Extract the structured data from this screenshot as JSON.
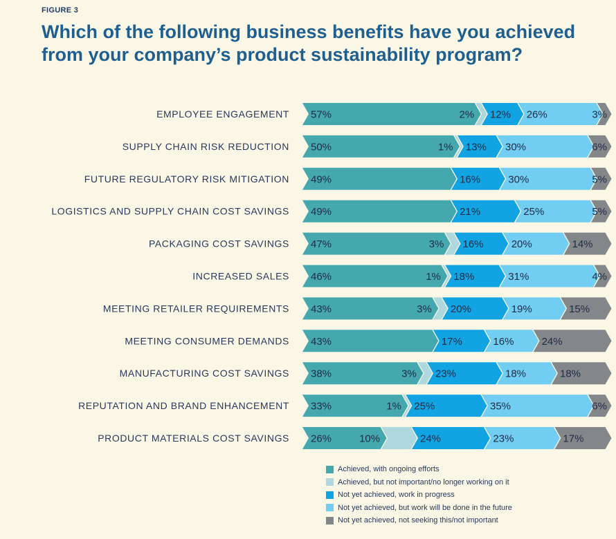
{
  "figure_label": "FIGURE 3",
  "title": "Which of the following business benefits have you achieved from your company’s product sustainability program?",
  "chart_data": {
    "type": "bar",
    "stacked": true,
    "orientation": "horizontal",
    "categories": [
      "EMPLOYEE ENGAGEMENT",
      "SUPPLY CHAIN RISK REDUCTION",
      "FUTURE REGULATORY RISK MITIGATION",
      "LOGISTICS AND SUPPLY CHAIN COST SAVINGS",
      "PACKAGING COST SAVINGS",
      "INCREASED SALES",
      "MEETING RETAILER REQUIREMENTS",
      "MEETING CONSUMER DEMANDS",
      "MANUFACTURING COST SAVINGS",
      "REPUTATION AND BRAND ENHANCEMENT",
      "PRODUCT MATERIALS COST SAVINGS"
    ],
    "series": [
      {
        "name": "Achieved, with ongoing efforts",
        "color": "#45a8ae",
        "values": [
          57,
          50,
          49,
          49,
          47,
          46,
          43,
          43,
          38,
          33,
          26
        ]
      },
      {
        "name": "Achieved, but not important/no longer working on it",
        "color": "#aed7de",
        "values": [
          2,
          1,
          0,
          0,
          3,
          1,
          3,
          0,
          3,
          1,
          10
        ]
      },
      {
        "name": "Not yet achieved, work in progress",
        "color": "#12a3e2",
        "values": [
          12,
          13,
          16,
          21,
          16,
          18,
          20,
          17,
          23,
          25,
          24
        ]
      },
      {
        "name": "Not yet achieved, but work will be done in the future",
        "color": "#72cdf2",
        "values": [
          26,
          30,
          30,
          25,
          20,
          31,
          19,
          16,
          18,
          35,
          23
        ]
      },
      {
        "name": "Not yet achieved, not seeking this/not important",
        "color": "#848789",
        "values": [
          3,
          6,
          5,
          5,
          14,
          4,
          15,
          24,
          18,
          6,
          17
        ]
      }
    ],
    "value_suffix": "%",
    "xlim": [
      0,
      100
    ]
  }
}
